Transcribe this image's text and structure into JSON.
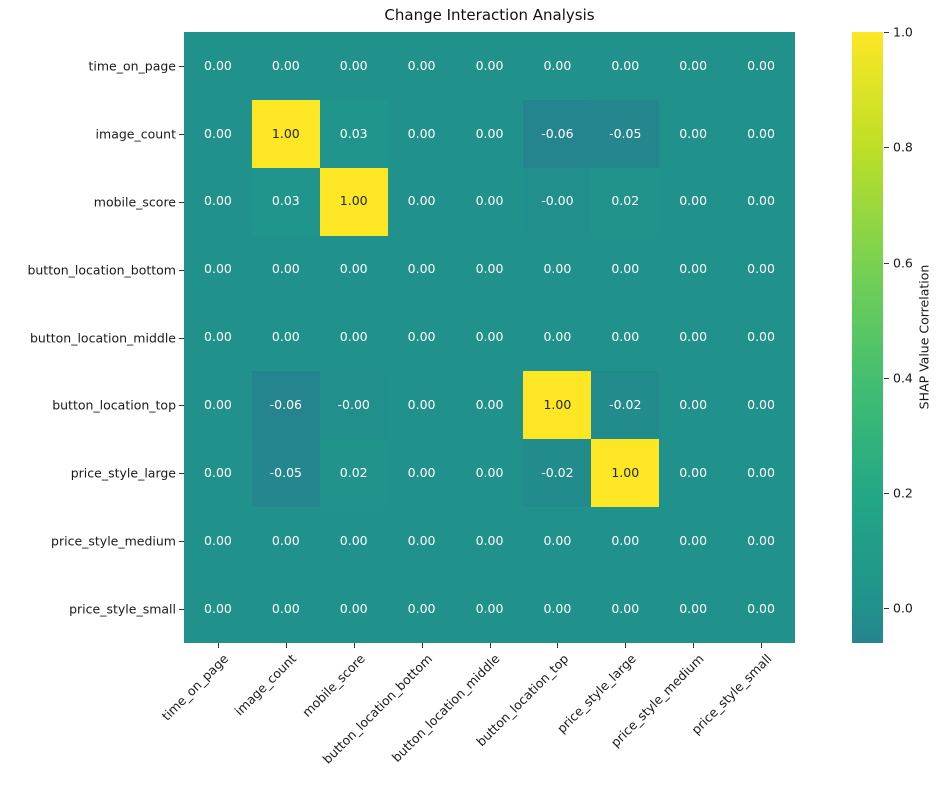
{
  "title": "Change Interaction Analysis",
  "colorbar": {
    "label": "SHAP Value Correlation",
    "ticks": [
      "1.0",
      "0.8",
      "0.6",
      "0.4",
      "0.2",
      "0.0"
    ]
  },
  "colors": {
    "annot_light": "#ffffff",
    "annot_dark": "#262626",
    "axis_text": "#1a1a1a",
    "value_colors": {
      "1.00": "#fde725",
      "0.03": "#1f958b",
      "0.02": "#20948b",
      "0.00": "#21918c",
      "-0.00": "#21908d",
      "-0.02": "#228c8d",
      "-0.05": "#24878e",
      "-0.06": "#25858e"
    },
    "colorbar_gradient": [
      {
        "stop": 0,
        "color": "#fde725"
      },
      {
        "stop": 18.9,
        "color": "#bddf26"
      },
      {
        "stop": 37.7,
        "color": "#7ad151"
      },
      {
        "stop": 56.6,
        "color": "#44bf70"
      },
      {
        "stop": 75.5,
        "color": "#22a884"
      },
      {
        "stop": 94.3,
        "color": "#21918c"
      },
      {
        "stop": 100,
        "color": "#25858e"
      }
    ]
  },
  "chart_data": {
    "type": "heatmap",
    "title": "Change Interaction Analysis",
    "rows": [
      "time_on_page",
      "image_count",
      "mobile_score",
      "button_location_bottom",
      "button_location_middle",
      "button_location_top",
      "price_style_large",
      "price_style_medium",
      "price_style_small"
    ],
    "columns": [
      "time_on_page",
      "image_count",
      "mobile_score",
      "button_location_bottom",
      "button_location_middle",
      "button_location_top",
      "price_style_large",
      "price_style_medium",
      "price_style_small"
    ],
    "values": [
      [
        0.0,
        0.0,
        0.0,
        0.0,
        0.0,
        0.0,
        0.0,
        0.0,
        0.0
      ],
      [
        0.0,
        1.0,
        0.03,
        0.0,
        0.0,
        -0.06,
        -0.05,
        0.0,
        0.0
      ],
      [
        0.0,
        0.03,
        1.0,
        0.0,
        0.0,
        -0.0,
        0.02,
        0.0,
        0.0
      ],
      [
        0.0,
        0.0,
        0.0,
        0.0,
        0.0,
        0.0,
        0.0,
        0.0,
        0.0
      ],
      [
        0.0,
        0.0,
        0.0,
        0.0,
        0.0,
        0.0,
        0.0,
        0.0,
        0.0
      ],
      [
        0.0,
        -0.06,
        -0.0,
        0.0,
        0.0,
        1.0,
        -0.02,
        0.0,
        0.0
      ],
      [
        0.0,
        -0.05,
        0.02,
        0.0,
        0.0,
        -0.02,
        1.0,
        0.0,
        0.0
      ],
      [
        0.0,
        0.0,
        0.0,
        0.0,
        0.0,
        0.0,
        0.0,
        0.0,
        0.0
      ],
      [
        0.0,
        0.0,
        0.0,
        0.0,
        0.0,
        0.0,
        0.0,
        0.0,
        0.0
      ]
    ],
    "values_display": [
      [
        "0.00",
        "0.00",
        "0.00",
        "0.00",
        "0.00",
        "0.00",
        "0.00",
        "0.00",
        "0.00"
      ],
      [
        "0.00",
        "1.00",
        "0.03",
        "0.00",
        "0.00",
        "-0.06",
        "-0.05",
        "0.00",
        "0.00"
      ],
      [
        "0.00",
        "0.03",
        "1.00",
        "0.00",
        "0.00",
        "-0.00",
        "0.02",
        "0.00",
        "0.00"
      ],
      [
        "0.00",
        "0.00",
        "0.00",
        "0.00",
        "0.00",
        "0.00",
        "0.00",
        "0.00",
        "0.00"
      ],
      [
        "0.00",
        "0.00",
        "0.00",
        "0.00",
        "0.00",
        "0.00",
        "0.00",
        "0.00",
        "0.00"
      ],
      [
        "0.00",
        "-0.06",
        "-0.00",
        "0.00",
        "0.00",
        "1.00",
        "-0.02",
        "0.00",
        "0.00"
      ],
      [
        "0.00",
        "-0.05",
        "0.02",
        "0.00",
        "0.00",
        "-0.02",
        "1.00",
        "0.00",
        "0.00"
      ],
      [
        "0.00",
        "0.00",
        "0.00",
        "0.00",
        "0.00",
        "0.00",
        "0.00",
        "0.00",
        "0.00"
      ],
      [
        "0.00",
        "0.00",
        "0.00",
        "0.00",
        "0.00",
        "0.00",
        "0.00",
        "0.00",
        "0.00"
      ]
    ],
    "colorbar_label": "SHAP Value Correlation",
    "colorbar_ticks": [
      1.0,
      0.8,
      0.6,
      0.4,
      0.2,
      0.0
    ],
    "value_range": [
      -0.06,
      1.0
    ],
    "colormap": "viridis centered at 0",
    "legend_position": "right-colorbar",
    "grid": false
  }
}
